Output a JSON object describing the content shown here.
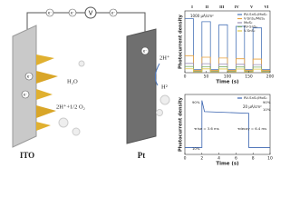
{
  "diagram": {
    "voltmeter": "V",
    "electron": "e⁻",
    "water": "H₂O",
    "oxidation": "2H⁺+1/2 O₂",
    "protons": "2H⁺",
    "hydrogen": "H²",
    "anode": "ITO",
    "cathode": "Pt"
  },
  "chart_data": [
    {
      "type": "line",
      "xlabel": "Time (s)",
      "ylabel": "Photocurrent density",
      "region_labels": [
        "I",
        "II",
        "III",
        "IV",
        "V",
        "VI"
      ],
      "scale_label": "1000 μA/cm²",
      "x": [
        0,
        20,
        20,
        40,
        40,
        60,
        60,
        80,
        80,
        100,
        100,
        120,
        120,
        140,
        140,
        160,
        160,
        180,
        180,
        200
      ],
      "series": [
        {
          "name": "RV-SnS₂/MoS₂",
          "color": "#4a74b8",
          "values": [
            3500,
            3500,
            200,
            200,
            3300,
            3300,
            200,
            200,
            3100,
            3100,
            200,
            200,
            3000,
            3000,
            200,
            200,
            2900,
            2900,
            200,
            200
          ]
        },
        {
          "name": "V-SnS₂/MoS₂",
          "color": "#e8a13c",
          "values": [
            1100,
            1100,
            150,
            150,
            1000,
            1000,
            150,
            150,
            950,
            950,
            150,
            150,
            900,
            900,
            150,
            150,
            880,
            880,
            150,
            150
          ]
        },
        {
          "name": "MoS₂",
          "color": "#9a8fb5",
          "values": [
            600,
            600,
            100,
            100,
            580,
            580,
            100,
            100,
            560,
            560,
            100,
            100,
            540,
            540,
            100,
            100,
            520,
            520,
            100,
            100
          ]
        },
        {
          "name": "RV-SnS₂",
          "color": "#7fb06a",
          "values": [
            400,
            400,
            80,
            80,
            390,
            390,
            80,
            80,
            380,
            380,
            80,
            80,
            370,
            370,
            80,
            80,
            360,
            360,
            80,
            80
          ]
        },
        {
          "name": "V-SnS₂",
          "color": "#e0c84a",
          "values": [
            250,
            250,
            50,
            50,
            245,
            245,
            50,
            50,
            240,
            240,
            50,
            50,
            235,
            235,
            50,
            50,
            230,
            230,
            50,
            50
          ]
        }
      ],
      "xlim": [
        0,
        200
      ],
      "xticks": [
        0,
        50,
        100,
        150,
        200
      ],
      "ylim": [
        0,
        4000
      ]
    },
    {
      "type": "line",
      "xlabel": "Time (s)",
      "ylabel": "Photocurrent density",
      "scale_label": "20 μA/cm²",
      "x": [
        0,
        2,
        2,
        2.3,
        7.5,
        7.5,
        10
      ],
      "series": [
        {
          "name": "RV-SnS₂/MoS₂",
          "color": "#3a64b0",
          "values": [
            0,
            0,
            55,
            42,
            40,
            0,
            0
          ]
        }
      ],
      "annotations": [
        "τrise = 3.6 ms",
        "τdecay = 6.4 ms",
        "10%",
        "90%",
        "10%",
        "90%"
      ],
      "xlim": [
        0,
        10
      ],
      "xticks": [
        0,
        2,
        4,
        6,
        8,
        10
      ],
      "ylim": [
        -8,
        62
      ]
    }
  ]
}
